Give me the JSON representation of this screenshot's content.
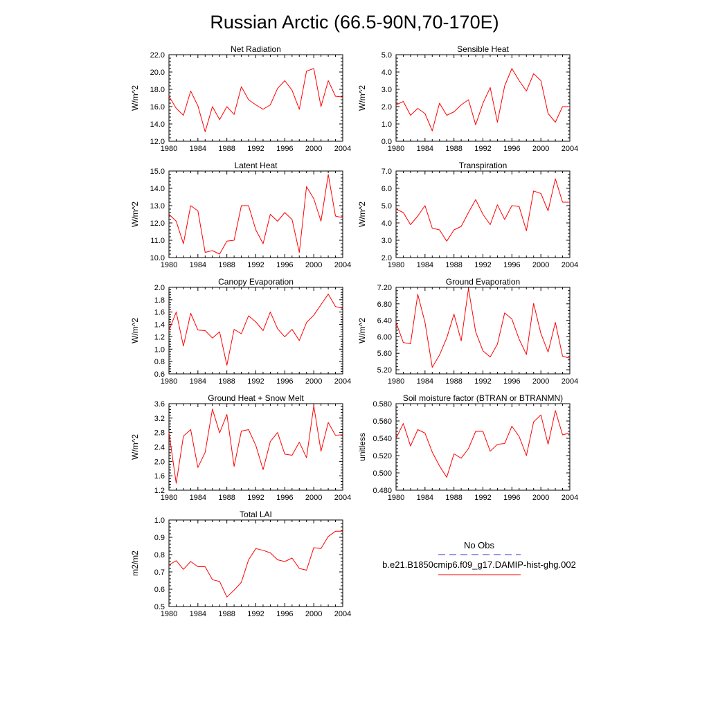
{
  "title": "Russian Arctic (66.5-90N,70-170E)",
  "legend": {
    "items": [
      {
        "label": "No Obs",
        "color": "#3333cc",
        "dash": "dashed"
      },
      {
        "label": "b.e21.B1850cmip6.f09_g17.DAMIP-hist-ghg.002",
        "color": "#ff0000",
        "dash": "solid"
      }
    ]
  },
  "chart_data": [
    {
      "type": "line",
      "title": "Net Radiation",
      "ylabel": "W/m^2",
      "xlim": [
        1980,
        2004
      ],
      "ylim": [
        12.0,
        22.0
      ],
      "xticks": [
        1980,
        1984,
        1988,
        1992,
        1996,
        2000,
        2004
      ],
      "xtick_labels": [
        "1980",
        "1984",
        "1988",
        "1992",
        "1996",
        "2000",
        "2004"
      ],
      "yticks": [
        12.0,
        14.0,
        16.0,
        18.0,
        20.0,
        22.0
      ],
      "ytick_labels": [
        "12.0",
        "14.0",
        "16.0",
        "18.0",
        "20.0",
        "22.0"
      ],
      "series": [
        {
          "color": "#ff0000",
          "x": [
            1980,
            1981,
            1982,
            1983,
            1984,
            1985,
            1986,
            1987,
            1988,
            1989,
            1990,
            1991,
            1992,
            1993,
            1994,
            1995,
            1996,
            1997,
            1998,
            1999,
            2000,
            2001,
            2002,
            2003,
            2004
          ],
          "y": [
            17.2,
            15.8,
            15.0,
            17.8,
            16.1,
            13.1,
            16.0,
            14.5,
            16.0,
            15.1,
            18.3,
            16.8,
            16.2,
            15.7,
            16.2,
            18.1,
            19.0,
            17.9,
            15.7,
            20.1,
            20.4,
            16.0,
            19.0,
            17.2,
            17.1
          ]
        }
      ]
    },
    {
      "type": "line",
      "title": "Sensible Heat",
      "ylabel": "W/m^2",
      "xlim": [
        1980,
        2004
      ],
      "ylim": [
        0.0,
        5.0
      ],
      "xticks": [
        1980,
        1984,
        1988,
        1992,
        1996,
        2000,
        2004
      ],
      "xtick_labels": [
        "1980",
        "1984",
        "1988",
        "1992",
        "1996",
        "2000",
        "2004"
      ],
      "yticks": [
        0.0,
        1.0,
        2.0,
        3.0,
        4.0,
        5.0
      ],
      "ytick_labels": [
        "0.0",
        "1.0",
        "2.0",
        "3.0",
        "4.0",
        "5.0"
      ],
      "series": [
        {
          "color": "#ff0000",
          "x": [
            1980,
            1981,
            1982,
            1983,
            1984,
            1985,
            1986,
            1987,
            1988,
            1989,
            1990,
            1991,
            1992,
            1993,
            1994,
            1995,
            1996,
            1997,
            1998,
            1999,
            2000,
            2001,
            2002,
            2003,
            2004
          ],
          "y": [
            2.1,
            2.3,
            1.5,
            1.9,
            1.6,
            0.6,
            2.2,
            1.5,
            1.7,
            2.1,
            2.4,
            0.95,
            2.2,
            3.1,
            1.1,
            3.2,
            4.2,
            3.5,
            2.9,
            3.9,
            3.5,
            1.6,
            1.1,
            2.0,
            2.0
          ]
        }
      ]
    },
    {
      "type": "line",
      "title": "Latent Heat",
      "ylabel": "W/m^2",
      "xlim": [
        1980,
        2004
      ],
      "ylim": [
        10.0,
        15.0
      ],
      "xticks": [
        1980,
        1984,
        1988,
        1992,
        1996,
        2000,
        2004
      ],
      "xtick_labels": [
        "1980",
        "1984",
        "1988",
        "1992",
        "1996",
        "2000",
        "2004"
      ],
      "yticks": [
        10.0,
        11.0,
        12.0,
        13.0,
        14.0,
        15.0
      ],
      "ytick_labels": [
        "10.0",
        "11.0",
        "12.0",
        "13.0",
        "14.0",
        "15.0"
      ],
      "series": [
        {
          "color": "#ff0000",
          "x": [
            1980,
            1981,
            1982,
            1983,
            1984,
            1985,
            1986,
            1987,
            1988,
            1989,
            1990,
            1991,
            1992,
            1993,
            1994,
            1995,
            1996,
            1997,
            1998,
            1999,
            2000,
            2001,
            2002,
            2003,
            2004
          ],
          "y": [
            12.5,
            12.1,
            10.8,
            13.0,
            12.7,
            10.3,
            10.4,
            10.2,
            10.95,
            11.0,
            13.0,
            13.0,
            11.6,
            10.8,
            12.5,
            12.1,
            12.6,
            12.2,
            10.3,
            14.1,
            13.4,
            12.1,
            14.8,
            12.4,
            12.3
          ]
        }
      ]
    },
    {
      "type": "line",
      "title": "Transpiration",
      "ylabel": "W/m^2",
      "xlim": [
        1980,
        2004
      ],
      "ylim": [
        2.0,
        7.0
      ],
      "xticks": [
        1980,
        1984,
        1988,
        1992,
        1996,
        2000,
        2004
      ],
      "xtick_labels": [
        "1980",
        "1984",
        "1988",
        "1992",
        "1996",
        "2000",
        "2004"
      ],
      "yticks": [
        2.0,
        3.0,
        4.0,
        5.0,
        6.0,
        7.0
      ],
      "ytick_labels": [
        "2.0",
        "3.0",
        "4.0",
        "5.0",
        "6.0",
        "7.0"
      ],
      "series": [
        {
          "color": "#ff0000",
          "x": [
            1980,
            1981,
            1982,
            1983,
            1984,
            1985,
            1986,
            1987,
            1988,
            1989,
            1990,
            1991,
            1992,
            1993,
            1994,
            1995,
            1996,
            1997,
            1998,
            1999,
            2000,
            2001,
            2002,
            2003,
            2004
          ],
          "y": [
            4.8,
            4.6,
            3.9,
            4.4,
            5.0,
            3.7,
            3.6,
            2.95,
            3.6,
            3.8,
            4.6,
            5.35,
            4.5,
            3.9,
            5.05,
            4.2,
            5.0,
            4.95,
            3.55,
            5.85,
            5.7,
            4.7,
            6.55,
            5.2,
            5.2
          ]
        }
      ]
    },
    {
      "type": "line",
      "title": "Canopy Evaporation",
      "ylabel": "W/m^2",
      "xlim": [
        1980,
        2004
      ],
      "ylim": [
        0.6,
        2.0
      ],
      "xticks": [
        1980,
        1984,
        1988,
        1992,
        1996,
        2000,
        2004
      ],
      "xtick_labels": [
        "1980",
        "1984",
        "1988",
        "1992",
        "1996",
        "2000",
        "2004"
      ],
      "yticks": [
        0.6,
        0.8,
        1.0,
        1.2,
        1.4,
        1.6,
        1.8,
        2.0
      ],
      "ytick_labels": [
        "0.6",
        "0.8",
        "1.0",
        "1.2",
        "1.4",
        "1.6",
        "1.8",
        "2.0"
      ],
      "series": [
        {
          "color": "#ff0000",
          "x": [
            1980,
            1981,
            1982,
            1983,
            1984,
            1985,
            1986,
            1987,
            1988,
            1989,
            1990,
            1991,
            1992,
            1993,
            1994,
            1995,
            1996,
            1997,
            1998,
            1999,
            2000,
            2001,
            2002,
            2003,
            2004
          ],
          "y": [
            1.3,
            1.6,
            1.05,
            1.58,
            1.31,
            1.3,
            1.18,
            1.28,
            0.74,
            1.32,
            1.25,
            1.54,
            1.44,
            1.3,
            1.6,
            1.33,
            1.2,
            1.32,
            1.14,
            1.43,
            1.55,
            1.72,
            1.89,
            1.69,
            1.66
          ]
        }
      ]
    },
    {
      "type": "line",
      "title": "Ground Evaporation",
      "ylabel": "W/m^2",
      "xlim": [
        1980,
        2004
      ],
      "ylim": [
        5.1,
        7.2
      ],
      "xticks": [
        1980,
        1984,
        1988,
        1992,
        1996,
        2000,
        2004
      ],
      "xtick_labels": [
        "1980",
        "1984",
        "1988",
        "1992",
        "1996",
        "2000",
        "2004"
      ],
      "yticks": [
        5.2,
        5.6,
        6.0,
        6.4,
        6.8,
        7.2
      ],
      "ytick_labels": [
        "5.20",
        "5.60",
        "6.00",
        "6.40",
        "6.80",
        "7.20"
      ],
      "series": [
        {
          "color": "#ff0000",
          "x": [
            1980,
            1981,
            1982,
            1983,
            1984,
            1985,
            1986,
            1987,
            1988,
            1989,
            1990,
            1991,
            1992,
            1993,
            1994,
            1995,
            1996,
            1997,
            1998,
            1999,
            2000,
            2001,
            2002,
            2003,
            2004
          ],
          "y": [
            6.35,
            5.86,
            5.83,
            7.03,
            6.35,
            5.26,
            5.56,
            5.97,
            6.55,
            5.9,
            7.17,
            6.12,
            5.66,
            5.51,
            5.82,
            6.58,
            6.43,
            5.94,
            5.57,
            6.81,
            6.08,
            5.63,
            6.35,
            5.53,
            5.48
          ]
        }
      ]
    },
    {
      "type": "line",
      "title": "Ground Heat + Snow Melt",
      "ylabel": "W/m^2",
      "xlim": [
        1980,
        2004
      ],
      "ylim": [
        1.2,
        3.6
      ],
      "xticks": [
        1980,
        1984,
        1988,
        1992,
        1996,
        2000,
        2004
      ],
      "xtick_labels": [
        "1980",
        "1984",
        "1988",
        "1992",
        "1996",
        "2000",
        "2004"
      ],
      "yticks": [
        1.2,
        1.6,
        2.0,
        2.4,
        2.8,
        3.2,
        3.6
      ],
      "ytick_labels": [
        "1.2",
        "1.6",
        "2.0",
        "2.4",
        "2.8",
        "3.2",
        "3.6"
      ],
      "series": [
        {
          "color": "#ff0000",
          "x": [
            1980,
            1981,
            1982,
            1983,
            1984,
            1985,
            1986,
            1987,
            1988,
            1989,
            1990,
            1991,
            1992,
            1993,
            1994,
            1995,
            1996,
            1997,
            1998,
            1999,
            2000,
            2001,
            2002,
            2003,
            2004
          ],
          "y": [
            2.8,
            1.39,
            2.7,
            2.88,
            1.83,
            2.25,
            3.45,
            2.79,
            3.3,
            1.86,
            2.84,
            2.88,
            2.44,
            1.77,
            2.55,
            2.8,
            2.2,
            2.17,
            2.53,
            2.1,
            3.54,
            2.28,
            3.08,
            2.72,
            2.74
          ]
        }
      ]
    },
    {
      "type": "line",
      "title": "Soil moisture factor (BTRAN or BTRANMN)",
      "ylabel": "unitless",
      "xlim": [
        1980,
        2004
      ],
      "ylim": [
        0.48,
        0.58
      ],
      "xticks": [
        1980,
        1984,
        1988,
        1992,
        1996,
        2000,
        2004
      ],
      "xtick_labels": [
        "1980",
        "1984",
        "1988",
        "1992",
        "1996",
        "2000",
        "2004"
      ],
      "yticks": [
        0.48,
        0.5,
        0.52,
        0.54,
        0.56,
        0.58
      ],
      "ytick_labels": [
        "0.480",
        "0.500",
        "0.520",
        "0.540",
        "0.560",
        "0.580"
      ],
      "series": [
        {
          "color": "#ff0000",
          "x": [
            1980,
            1981,
            1982,
            1983,
            1984,
            1985,
            1986,
            1987,
            1988,
            1989,
            1990,
            1991,
            1992,
            1993,
            1994,
            1995,
            1996,
            1997,
            1998,
            1999,
            2000,
            2001,
            2002,
            2003,
            2004
          ],
          "y": [
            0.54,
            0.557,
            0.531,
            0.55,
            0.546,
            0.524,
            0.508,
            0.495,
            0.522,
            0.517,
            0.528,
            0.548,
            0.548,
            0.525,
            0.533,
            0.534,
            0.554,
            0.542,
            0.52,
            0.559,
            0.567,
            0.533,
            0.572,
            0.544,
            0.546
          ]
        }
      ]
    },
    {
      "type": "line",
      "title": "Total LAI",
      "ylabel": "m2/m2",
      "xlim": [
        1980,
        2004
      ],
      "ylim": [
        0.5,
        1.0
      ],
      "xticks": [
        1980,
        1984,
        1988,
        1992,
        1996,
        2000,
        2004
      ],
      "xtick_labels": [
        "1980",
        "1984",
        "1988",
        "1992",
        "1996",
        "2000",
        "2004"
      ],
      "yticks": [
        0.5,
        0.6,
        0.7,
        0.8,
        0.9,
        1.0
      ],
      "ytick_labels": [
        "0.5",
        "0.6",
        "0.7",
        "0.8",
        "0.9",
        "1.0"
      ],
      "series": [
        {
          "color": "#ff0000",
          "x": [
            1980,
            1981,
            1982,
            1983,
            1984,
            1985,
            1986,
            1987,
            1988,
            1989,
            1990,
            1991,
            1992,
            1993,
            1994,
            1995,
            1996,
            1997,
            1998,
            1999,
            2000,
            2001,
            2002,
            2003,
            2004
          ],
          "y": [
            0.74,
            0.765,
            0.715,
            0.76,
            0.73,
            0.73,
            0.655,
            0.645,
            0.555,
            0.595,
            0.64,
            0.77,
            0.835,
            0.825,
            0.81,
            0.77,
            0.76,
            0.78,
            0.72,
            0.71,
            0.84,
            0.835,
            0.905,
            0.935,
            0.935
          ]
        }
      ]
    }
  ]
}
